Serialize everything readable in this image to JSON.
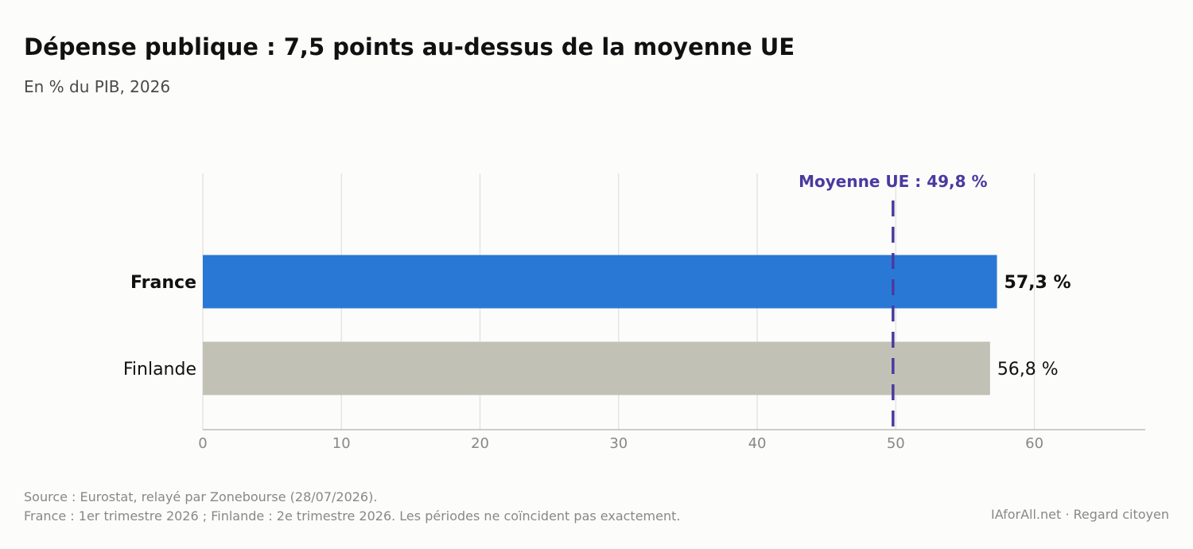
{
  "title": "Dépense publique : 7,5 points au-dessus de la moyenne UE",
  "subtitle": "En % du PIB, 2026",
  "chart_data": {
    "type": "bar",
    "orientation": "horizontal",
    "categories": [
      "France",
      "Finlande"
    ],
    "values": [
      57.3,
      56.8
    ],
    "value_labels": [
      "57,3 %",
      "56,8 %"
    ],
    "colors": [
      "#2a78d6",
      "#c1c1b6"
    ],
    "xlim": [
      0,
      68
    ],
    "xticks": [
      0,
      10,
      20,
      30,
      40,
      50,
      60
    ],
    "grid": true,
    "reference_line": {
      "value": 49.8,
      "label": "Moyenne UE : 49,8 %",
      "color": "#4a3a9f",
      "style": "dashed"
    }
  },
  "footer": {
    "source": "Source : Eurostat, relayé par Zonebourse (28/07/2026).",
    "note": "France : 1er trimestre 2026 ; Finlande : 2e trimestre 2026. Les périodes ne coïncident pas exactement.",
    "credit": "IAforAll.net · Regard citoyen"
  }
}
